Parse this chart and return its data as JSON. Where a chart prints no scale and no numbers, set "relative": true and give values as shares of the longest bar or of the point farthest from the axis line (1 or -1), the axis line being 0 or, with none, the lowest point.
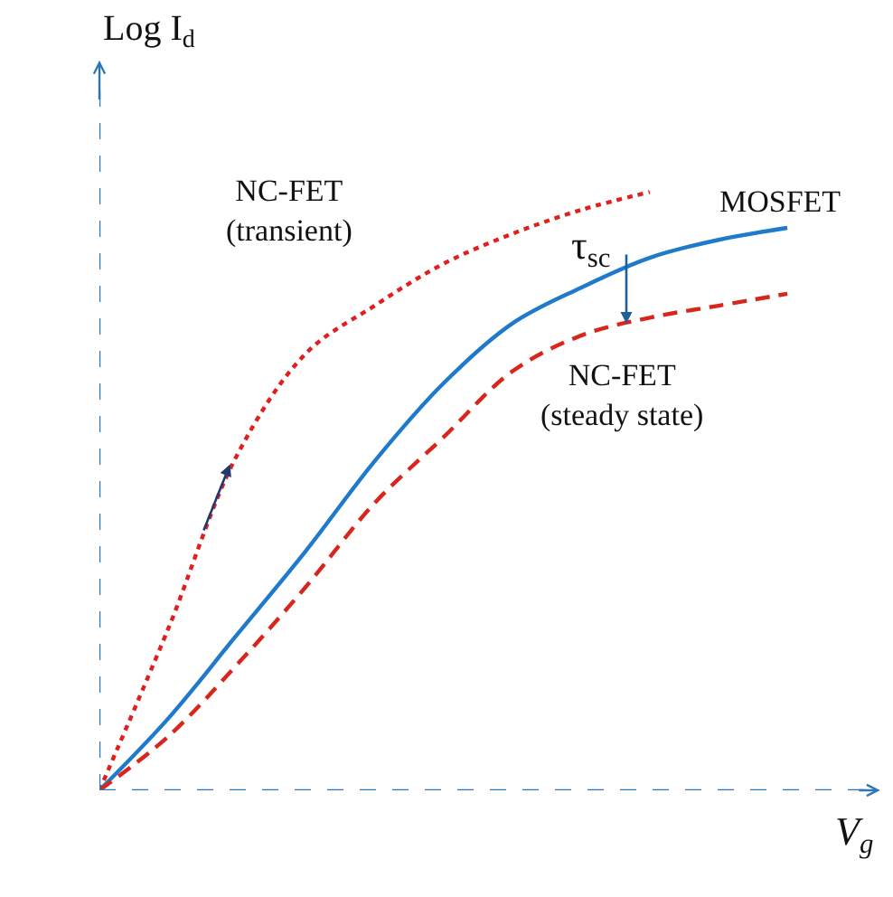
{
  "chart_data": {
    "type": "line",
    "relative": true,
    "xlabel": "V$_{g}$",
    "ylabel": "Log I$_{d}$",
    "categories": [
      null,
      null,
      null,
      null,
      null,
      null,
      null,
      null,
      null,
      null,
      null
    ],
    "series": [
      {
        "name": "NC-FET (transient)",
        "color": "#e02020",
        "line_style": "dotted",
        "values": [
          0,
          0.27,
          0.56,
          0.73,
          0.81,
          0.88,
          0.93,
          0.97,
          1,
          null,
          null
        ]
      },
      {
        "name": "MOSFET",
        "color": "#1f7acb",
        "line_style": "solid",
        "values": [
          0,
          0.12,
          0.26,
          0.4,
          0.55,
          0.68,
          0.78,
          0.84,
          0.89,
          0.92,
          0.94
        ]
      },
      {
        "name": "NC-FET (steady state)",
        "color": "#d9261c",
        "line_style": "dashed",
        "values": [
          0,
          0.09,
          0.21,
          0.34,
          0.48,
          0.59,
          0.7,
          0.76,
          0.79,
          0.81,
          0.83
        ]
      }
    ],
    "annotations": [
      "τ$_{sc}$"
    ],
    "grid": false,
    "legend": false,
    "marker": "none",
    "tick_labels": false
  }
}
